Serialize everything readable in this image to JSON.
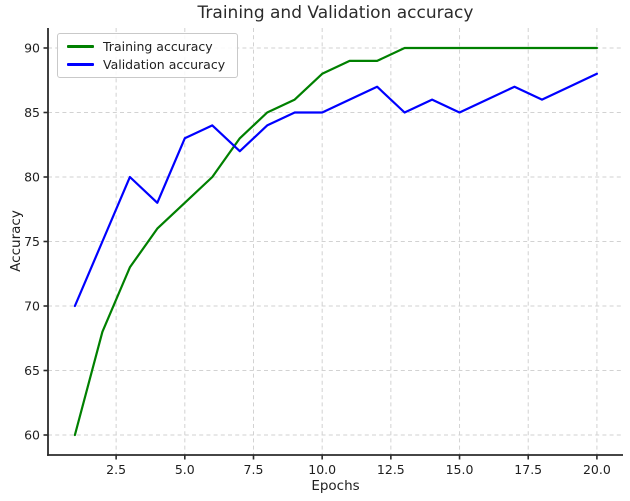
{
  "figure": {
    "title": "Training and Validation accuracy",
    "xlabel": "Epochs",
    "ylabel": "Accuracy"
  },
  "chart_data": {
    "type": "line",
    "title": "Training and Validation accuracy",
    "xlabel": "Epochs",
    "ylabel": "Accuracy",
    "x": [
      1,
      2,
      3,
      4,
      5,
      6,
      7,
      8,
      9,
      10,
      11,
      12,
      13,
      14,
      15,
      16,
      17,
      18,
      19,
      20
    ],
    "series": [
      {
        "name": "Training accuracy",
        "color": "#008000",
        "values": [
          60,
          68,
          73,
          76,
          78,
          80,
          83,
          85,
          86,
          88,
          89,
          89,
          90,
          90,
          90,
          90,
          90,
          90,
          90,
          90
        ]
      },
      {
        "name": "Validation accuracy",
        "color": "#0000ff",
        "values": [
          70,
          75,
          80,
          78,
          83,
          84,
          82,
          84,
          85,
          85,
          86,
          87,
          85,
          86,
          85,
          86,
          87,
          86,
          87,
          88
        ]
      }
    ],
    "xlim": [
      0.02,
      20.95
    ],
    "ylim": [
      58.45,
      91.55
    ],
    "xticks": [
      2.5,
      5.0,
      7.5,
      10.0,
      12.5,
      15.0,
      17.5,
      20.0
    ],
    "xtick_labels": [
      "2.5",
      "5.0",
      "7.5",
      "10.0",
      "12.5",
      "15.0",
      "17.5",
      "20.0"
    ],
    "yticks": [
      60,
      65,
      70,
      75,
      80,
      85,
      90
    ],
    "ytick_labels": [
      "60",
      "65",
      "70",
      "75",
      "80",
      "85",
      "90"
    ],
    "grid": true,
    "legend_position": "upper left"
  },
  "style": {
    "grid_color": "#d2d2d2",
    "spine_color": "#2b2b2b",
    "tick_text_color": "#1f1f1f",
    "line_width": 2.2
  }
}
